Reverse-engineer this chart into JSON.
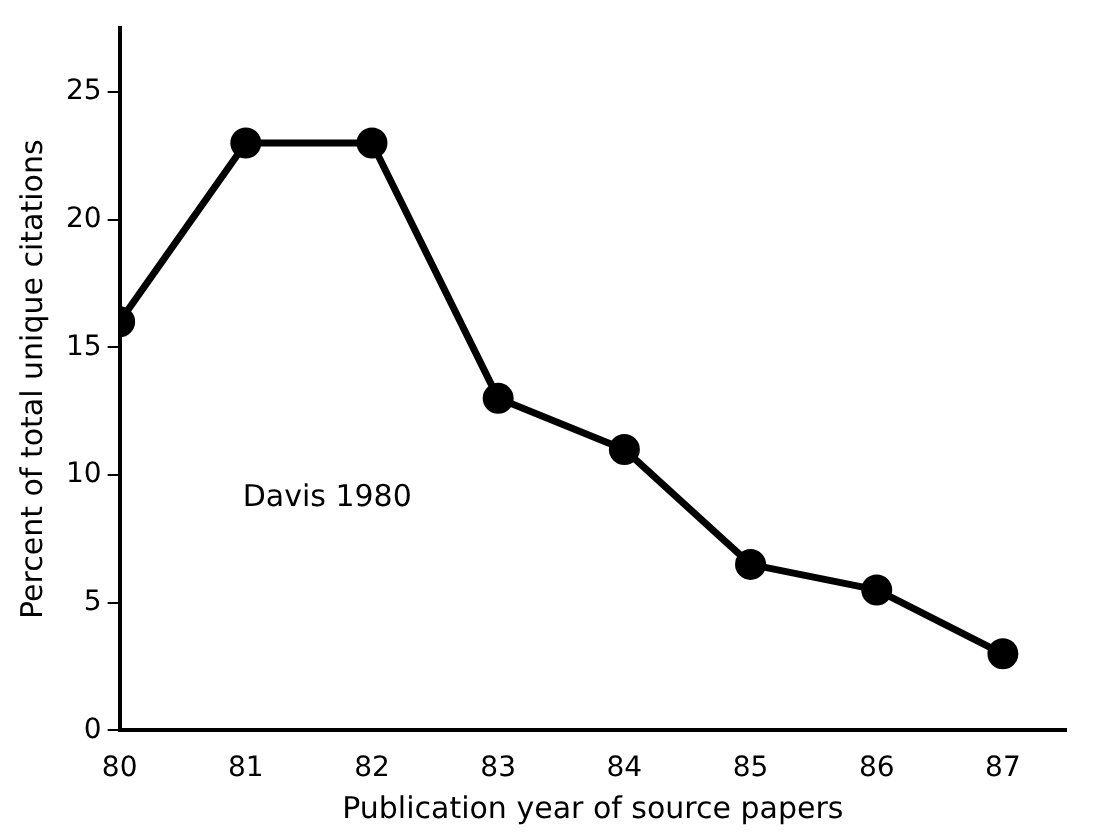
{
  "chart_data": {
    "type": "line",
    "xlabel": "Publication year of source papers",
    "ylabel": "Percent of total unique citations",
    "x": [
      80,
      81,
      82,
      83,
      84,
      85,
      86,
      87
    ],
    "series": [
      {
        "color": "#000000",
        "values": [
          16,
          23,
          23,
          13,
          11,
          6.5,
          5.5,
          3
        ]
      }
    ],
    "xlim": [
      80,
      87.5
    ],
    "xticks": [
      80,
      81,
      82,
      83,
      84,
      85,
      86,
      87
    ],
    "ylim": [
      0,
      27.5
    ],
    "yticks": [
      0,
      5,
      10,
      15,
      20,
      25
    ],
    "grid": false,
    "legend": false,
    "marker": "circle",
    "line_style": "solid",
    "annotations": [
      "Davis 1980"
    ]
  }
}
